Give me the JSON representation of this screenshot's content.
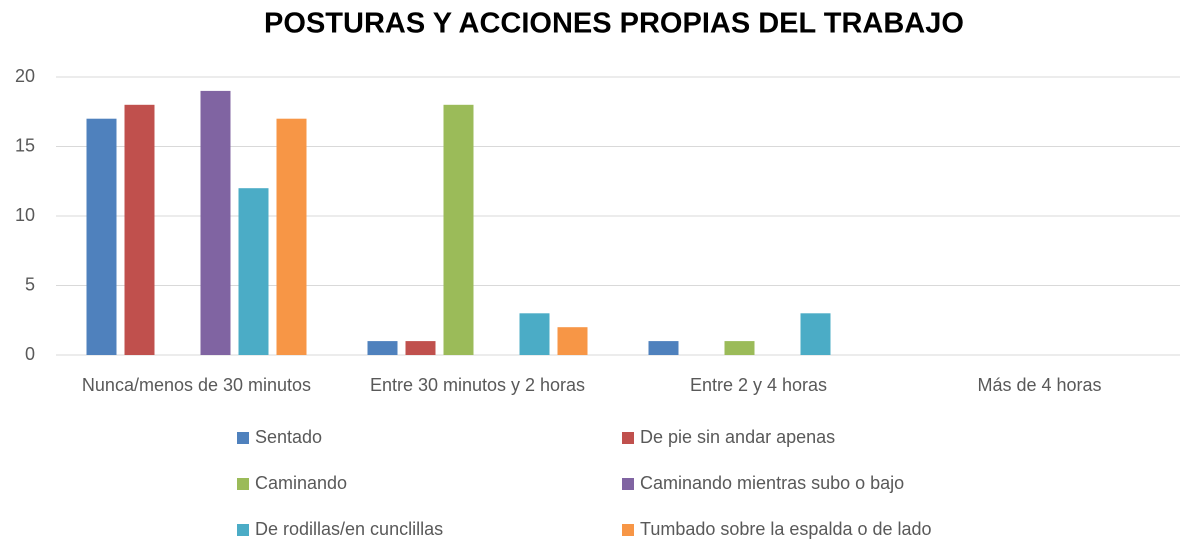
{
  "chart_data": {
    "type": "bar",
    "title": "POSTURAS Y ACCIONES PROPIAS DEL TRABAJO",
    "categories": [
      "Nunca/menos de 30 minutos",
      "Entre 30 minutos y 2 horas",
      "Entre 2 y 4 horas",
      "Más de 4 horas"
    ],
    "series": [
      {
        "name": "Sentado",
        "color": "#4f81bd",
        "values": [
          17,
          1,
          1,
          0
        ]
      },
      {
        "name": "De pie sin andar apenas",
        "color": "#c0504d",
        "values": [
          18,
          1,
          0,
          0
        ]
      },
      {
        "name": "Caminando",
        "color": "#9bbb59",
        "values": [
          0,
          18,
          1,
          0
        ]
      },
      {
        "name": "Caminando mientras subo o bajo",
        "color": "#8064a2",
        "values": [
          19,
          0,
          0,
          0
        ]
      },
      {
        "name": "De rodillas/en cunclillas",
        "color": "#4bacc6",
        "values": [
          12,
          3,
          3,
          0
        ]
      },
      {
        "name": "Tumbado sobre la espalda o de lado",
        "color": "#f79646",
        "values": [
          17,
          2,
          0,
          0
        ]
      }
    ],
    "ylim": [
      0,
      20
    ],
    "yticks": [
      0,
      5,
      10,
      15,
      20
    ],
    "grid": true,
    "legend": "bottom"
  }
}
